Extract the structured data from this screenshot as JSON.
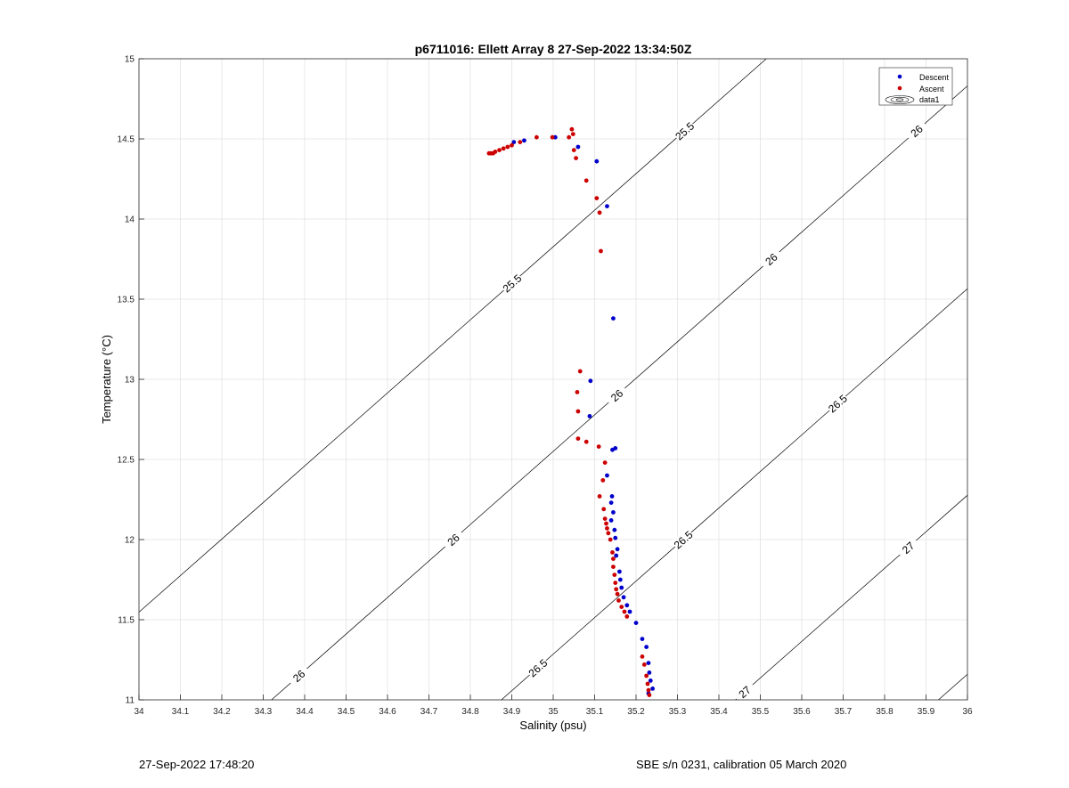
{
  "chart_data": {
    "type": "scatter",
    "title": "p6711016: Ellett Array 8 27-Sep-2022 13:34:50Z",
    "xlabel": "Salinity (psu)",
    "ylabel": "Temperature (°C)",
    "xlim": [
      34,
      36
    ],
    "ylim": [
      11,
      15
    ],
    "x_ticks": [
      "34",
      "34.1",
      "34.2",
      "34.3",
      "34.4",
      "34.5",
      "34.6",
      "34.7",
      "34.8",
      "34.9",
      "35",
      "35.1",
      "35.2",
      "35.3",
      "35.4",
      "35.5",
      "35.6",
      "35.7",
      "35.8",
      "35.9",
      "36"
    ],
    "y_ticks": [
      "11",
      "11.5",
      "12",
      "12.5",
      "13",
      "13.5",
      "14",
      "14.5",
      "15"
    ],
    "grid": true,
    "legend_position": "top-right",
    "legend": [
      "Descent",
      "Ascent",
      "data1"
    ],
    "colors": {
      "descent": "#0000cc",
      "ascent": "#cc0000",
      "contour": "#000000"
    },
    "series": [
      {
        "name": "Descent",
        "x": [
          34.905,
          34.93,
          35.005,
          35.06,
          35.105,
          35.13,
          35.145,
          35.09,
          35.088,
          35.15,
          35.143,
          35.13,
          35.142,
          35.14,
          35.145,
          35.14,
          35.148,
          35.15,
          35.155,
          35.152,
          35.16,
          35.162,
          35.165,
          35.17,
          35.178,
          35.185,
          35.2,
          35.215,
          35.225,
          35.23,
          35.232,
          35.235,
          35.24,
          35.23
        ],
        "y": [
          14.48,
          14.49,
          14.51,
          14.45,
          14.36,
          14.08,
          13.38,
          12.99,
          12.77,
          12.57,
          12.56,
          12.4,
          12.27,
          12.23,
          12.17,
          12.12,
          12.06,
          12.01,
          11.94,
          11.9,
          11.8,
          11.75,
          11.7,
          11.64,
          11.59,
          11.55,
          11.48,
          11.38,
          11.33,
          11.23,
          11.17,
          11.12,
          11.07,
          11.04
        ]
      },
      {
        "name": "Ascent",
        "x": [
          34.845,
          34.85,
          34.855,
          34.86,
          34.87,
          34.88,
          34.89,
          34.9,
          34.92,
          34.96,
          34.998,
          35.038,
          35.045,
          35.048,
          35.05,
          35.055,
          35.08,
          35.105,
          35.112,
          35.115,
          35.065,
          35.058,
          35.06,
          35.06,
          35.08,
          35.11,
          35.125,
          35.12,
          35.112,
          35.122,
          35.125,
          35.128,
          35.13,
          35.133,
          35.138,
          35.143,
          35.145,
          35.145,
          35.148,
          35.15,
          35.152,
          35.155,
          35.158,
          35.165,
          35.172,
          35.178,
          35.215,
          35.22,
          35.225,
          35.228,
          35.23,
          35.232
        ],
        "y": [
          14.41,
          14.41,
          14.41,
          14.42,
          14.43,
          14.44,
          14.45,
          14.46,
          14.48,
          14.51,
          14.51,
          14.51,
          14.56,
          14.53,
          14.43,
          14.38,
          14.24,
          14.13,
          14.04,
          13.8,
          13.05,
          12.92,
          12.8,
          12.63,
          12.61,
          12.58,
          12.48,
          12.37,
          12.27,
          12.19,
          12.13,
          12.1,
          12.07,
          12.04,
          12.0,
          11.92,
          11.88,
          11.83,
          11.78,
          11.73,
          11.69,
          11.66,
          11.62,
          11.58,
          11.55,
          11.52,
          11.27,
          11.22,
          11.15,
          11.1,
          11.06,
          11.03
        ]
      }
    ],
    "contour_labels": [
      "25.5",
      "26",
      "26.5",
      "27"
    ]
  },
  "footer": {
    "timestamp": "27-Sep-2022 17:48:20",
    "calibration": "SBE s/n 0231, calibration 05 March 2020"
  }
}
